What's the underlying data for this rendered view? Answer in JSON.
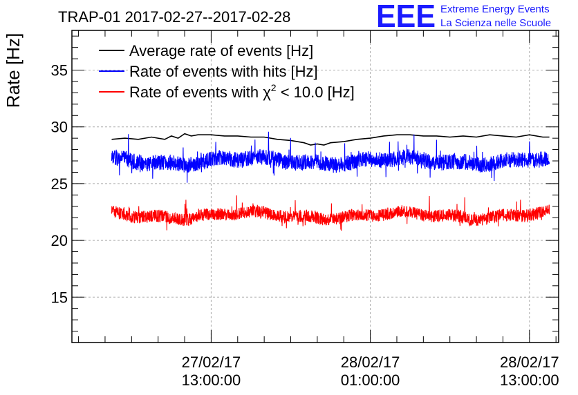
{
  "chart_data": {
    "type": "line",
    "title": "TRAP-01 2017-02-27--2017-02-28",
    "ylabel": "Rate [Hz]",
    "xlabel": "",
    "ylim": [
      11,
      38.5
    ],
    "xlim": [
      -10.5,
      26.2
    ],
    "yticks": [
      15,
      20,
      25,
      30,
      35
    ],
    "xticks": [
      {
        "value": 0,
        "line1": "27/02/17",
        "line2": "13:00:00"
      },
      {
        "value": 12,
        "line1": "28/02/17",
        "line2": "01:00:00"
      },
      {
        "value": 24,
        "line1": "28/02/17",
        "line2": "13:00:00"
      }
    ],
    "grid": true,
    "legend_position": "top-left",
    "x_unit": "hours from 27/02/17 13:00:00",
    "series": [
      {
        "name": "Average rate of events [Hz]",
        "color": "#000000",
        "legend_text": "Average rate of events [Hz]",
        "x": [
          -7.5,
          -6.5,
          -5.5,
          -4.5,
          -3.5,
          -3,
          -2.5,
          -2,
          -1.5,
          -1,
          0,
          1,
          2,
          3,
          4,
          5,
          6,
          7,
          7.5,
          8,
          8.5,
          9,
          10,
          11,
          12,
          13,
          14,
          15,
          16,
          17,
          18,
          19,
          20,
          21,
          22,
          23,
          24,
          25,
          25.5
        ],
        "values": [
          28.9,
          29.0,
          28.9,
          29.1,
          28.9,
          29.2,
          29.0,
          29.4,
          29.2,
          29.3,
          29.3,
          29.2,
          29.2,
          29.1,
          29.1,
          28.9,
          28.8,
          28.6,
          28.4,
          28.5,
          28.4,
          28.6,
          28.7,
          28.9,
          29.0,
          29.2,
          29.3,
          29.3,
          29.2,
          29.2,
          29.1,
          29.2,
          29.1,
          29.3,
          29.2,
          29.1,
          29.3,
          29.1,
          29.1
        ]
      },
      {
        "name": "Rate of events with hits [Hz]",
        "color": "#0000ff",
        "legend_text": "Rate of events with hits [Hz]",
        "x_start": -7.5,
        "x_end": 25.5,
        "mean": 27.0,
        "noise_amplitude": 0.7,
        "spike_amplitude": 1.4,
        "samples": 2200
      },
      {
        "name": "Rate of events with χ² < 10.0 [Hz]",
        "color": "#ff0000",
        "legend_text_main": "Rate of events with ",
        "legend_symbol": "χ",
        "legend_superscript": "2",
        "legend_text_rest": " < 10.0 [Hz]",
        "x_start": -7.5,
        "x_end": 25.5,
        "mean": 22.2,
        "noise_amplitude": 0.55,
        "spike_amplitude": 1.2,
        "samples": 2200
      }
    ]
  },
  "logo": {
    "mark": "EEE",
    "line1": "Extreme Energy Events",
    "line2": "La Scienza nelle Scuole",
    "color": "#1a1aff"
  }
}
